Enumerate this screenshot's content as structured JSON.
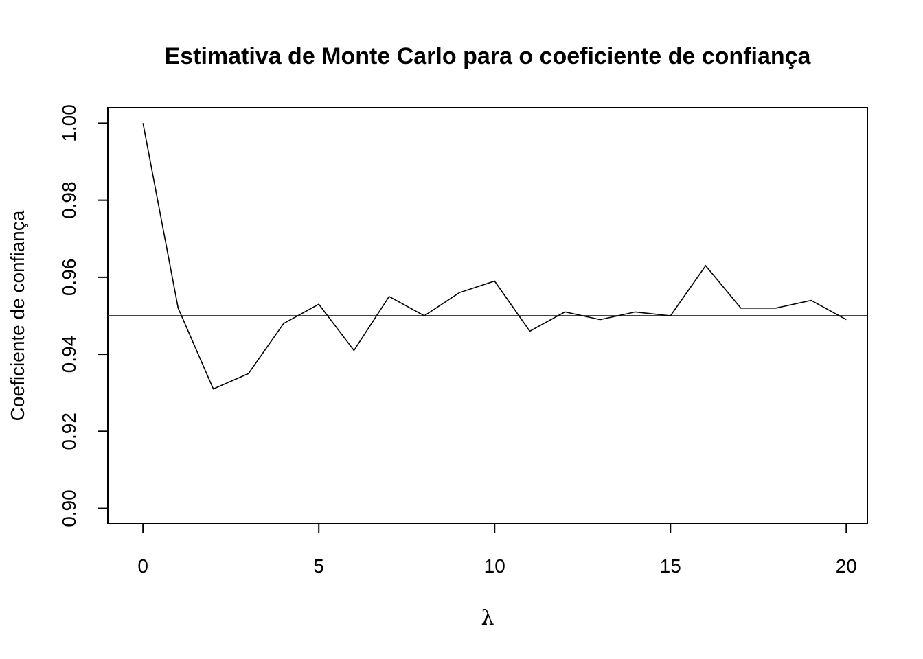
{
  "chart_data": {
    "type": "line",
    "title": "Estimativa de Monte Carlo para o coeficiente de confiança",
    "xlabel": "λ",
    "ylabel": "Coeficiente de confiança",
    "xlim": [
      -1,
      20.6
    ],
    "ylim": [
      0.896,
      1.004
    ],
    "x_ticks": [
      0,
      5,
      10,
      15,
      20
    ],
    "x_tick_labels": [
      "0",
      "5",
      "10",
      "15",
      "20"
    ],
    "y_ticks": [
      0.9,
      0.92,
      0.94,
      0.96,
      0.98,
      1.0
    ],
    "y_tick_labels": [
      "0.90",
      "0.92",
      "0.94",
      "0.96",
      "0.98",
      "1.00"
    ],
    "grid": false,
    "series": [
      {
        "color": "#000000",
        "x": [
          0,
          1,
          2,
          3,
          4,
          5,
          6,
          7,
          8,
          9,
          10,
          11,
          12,
          13,
          14,
          15,
          16,
          17,
          18,
          19,
          20
        ],
        "values": [
          1.0,
          0.952,
          0.931,
          0.935,
          0.948,
          0.953,
          0.941,
          0.955,
          0.95,
          0.956,
          0.959,
          0.946,
          0.951,
          0.949,
          0.951,
          0.95,
          0.963,
          0.952,
          0.952,
          0.954,
          0.949
        ]
      }
    ],
    "reference_line": {
      "y": 0.95,
      "color": "#dd0000"
    }
  }
}
